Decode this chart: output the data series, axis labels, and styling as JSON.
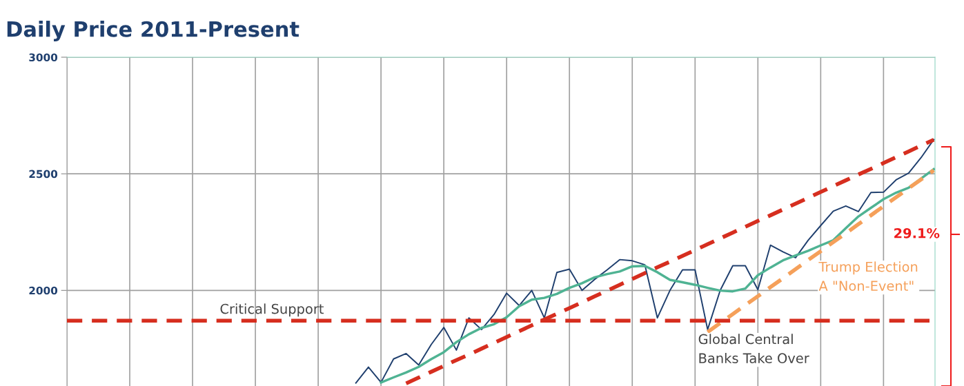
{
  "chart_data": {
    "type": "line",
    "title": "Daily Price 2011-Present",
    "categories": [
      null,
      null,
      null,
      null,
      null,
      null,
      null,
      null,
      null,
      null,
      null,
      null,
      null,
      null,
      null,
      null,
      null,
      null,
      null,
      null,
      null,
      null,
      null,
      null,
      null,
      null,
      null,
      null,
      null,
      null,
      null,
      null,
      null,
      null,
      null,
      null,
      null,
      null,
      null,
      null,
      null,
      null,
      null,
      null,
      null,
      null,
      null,
      null,
      null,
      null,
      null,
      null,
      null,
      null,
      null,
      null,
      null,
      null,
      null,
      null,
      null,
      null,
      null,
      null,
      null,
      null,
      null,
      null,
      null,
      null
    ],
    "ylim": [
      1590,
      3000
    ],
    "yticks": [
      2000,
      2500,
      3000
    ],
    "tick_labels": "y",
    "grid": true,
    "marker": "none",
    "series": [
      {
        "color": "#1f3f6e",
        "line_style": "solid",
        "values": [
          null,
          null,
          null,
          null,
          null,
          null,
          null,
          null,
          null,
          null,
          null,
          null,
          null,
          null,
          null,
          null,
          null,
          null,
          null,
          null,
          null,
          null,
          null,
          1603,
          1671,
          1606,
          1706,
          1729,
          1680,
          1768,
          1841,
          1744,
          1882,
          1832,
          1897,
          1988,
          1935,
          2000,
          1882,
          2077,
          2091,
          2000,
          2047,
          2088,
          2132,
          2127,
          2110,
          1882,
          2000,
          2088,
          2088,
          1832,
          2000,
          2106,
          2106,
          2003,
          2194,
          2165,
          2140,
          2215,
          2278,
          2340,
          2362,
          2338,
          2420,
          2421,
          2474,
          2503,
          2570,
          2647
        ]
      },
      {
        "color": "#4fb393",
        "line_style": "solid",
        "values": [
          null,
          null,
          null,
          null,
          null,
          null,
          null,
          null,
          null,
          null,
          null,
          null,
          null,
          null,
          null,
          null,
          null,
          null,
          null,
          null,
          null,
          null,
          null,
          null,
          null,
          1605,
          1627,
          1648,
          1672,
          1705,
          1735,
          1778,
          1812,
          1839,
          1855,
          1885,
          1932,
          1960,
          1968,
          1985,
          2011,
          2031,
          2056,
          2070,
          2081,
          2103,
          2105,
          2078,
          2045,
          2035,
          2024,
          2011,
          1999,
          1996,
          2008,
          2065,
          2098,
          2129,
          2150,
          2170,
          2193,
          2215,
          2267,
          2317,
          2354,
          2391,
          2419,
          2440,
          2480,
          2520
        ]
      },
      {
        "color": "#d62e1f",
        "line_style": "dashed",
        "values": [
          null,
          null,
          null,
          null,
          null,
          null,
          null,
          null,
          null,
          null,
          null,
          null,
          null,
          null,
          null,
          null,
          null,
          null,
          null,
          null,
          null,
          null,
          null,
          null,
          null,
          null,
          null,
          1601,
          1626,
          1651,
          1676,
          1701,
          1725,
          1750,
          1775,
          1800,
          1825,
          1850,
          1875,
          1900,
          1924,
          1949,
          1974,
          1999,
          2024,
          2049,
          2074,
          2099,
          2123,
          2148,
          2173,
          2198,
          2223,
          2248,
          2273,
          2298,
          2322,
          2347,
          2372,
          2397,
          2422,
          2447,
          2472,
          2497,
          2521,
          2546,
          2571,
          2596,
          2621,
          2646
        ]
      },
      {
        "color": "#f5a05a",
        "line_style": "dashed",
        "values": [
          null,
          null,
          null,
          null,
          null,
          null,
          null,
          null,
          null,
          null,
          null,
          null,
          null,
          null,
          null,
          null,
          null,
          null,
          null,
          null,
          null,
          null,
          null,
          null,
          null,
          null,
          null,
          null,
          null,
          null,
          null,
          null,
          null,
          null,
          null,
          null,
          null,
          null,
          null,
          null,
          null,
          null,
          null,
          null,
          null,
          null,
          null,
          null,
          null,
          null,
          null,
          1821,
          1860,
          1898,
          1937,
          1975,
          2014,
          2052,
          2091,
          2130,
          2168,
          2207,
          2245,
          2284,
          2322,
          2361,
          2399,
          2438,
          2476,
          2515
        ]
      }
    ],
    "ref_lines": [
      {
        "axis": "y",
        "value": 1870,
        "label": "Critical Support",
        "color": "#d62e1f",
        "line_style": "dashed"
      }
    ],
    "annotations": [
      "Global Central\nBanks Take Over",
      "Trump Election\nA \"Non-Event\"",
      "29.1%"
    ]
  }
}
